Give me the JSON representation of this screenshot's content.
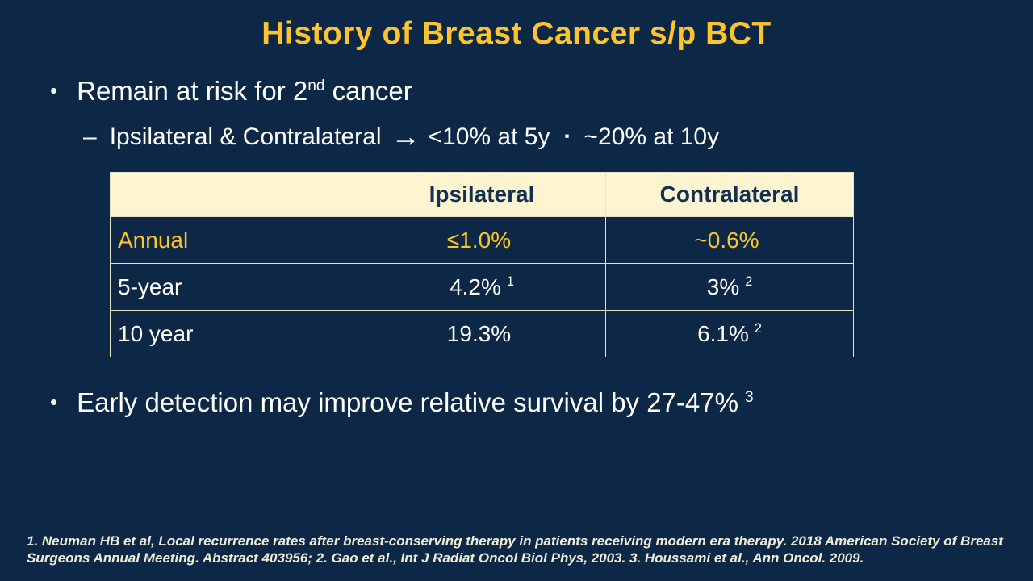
{
  "slide": {
    "title": "History of Breast Cancer s/p BCT",
    "bullet_second_cancer": {
      "text": "Remain at risk for 2",
      "sup": "nd",
      "text_after": " cancer"
    },
    "sub_bullet_rates": {
      "dash": "–",
      "text": "Ipsilateral & Contralateral",
      "arrow": "→",
      "stat1": "<10% at 5y",
      "separator": "▪",
      "stat2": "~20% at 10y"
    },
    "table": {
      "headers": [
        "",
        "Ipsilateral",
        "Contralateral"
      ],
      "rows": [
        {
          "label": "Annual",
          "ipsi": "≤1.0%",
          "ipsi_sup": "",
          "contra": "~0.6%",
          "contra_sup": ""
        },
        {
          "label": "5-year",
          "ipsi": "4.2%",
          "ipsi_sup": "1",
          "contra": "3%",
          "contra_sup": "2"
        },
        {
          "label": "10 year",
          "ipsi": "19.3%",
          "ipsi_sup": "",
          "contra": "6.1%",
          "contra_sup": "2"
        }
      ]
    },
    "bullet_early_detection": {
      "text": "Early detection may improve relative survival by 27-47%",
      "sup": "3"
    },
    "footnote": "1. Neuman HB et al, Local recurrence rates after breast-conserving therapy in patients receiving modern era therapy. 2018 American Society of Breast Surgeons Annual Meeting. Abstract 403956; 2. Gao et al., Int J Radiat Oncol Biol Phys, 2003. 3. Houssami et al., Ann Oncol. 2009.",
    "glyphs": {
      "bullet": "•"
    },
    "colors": {
      "background": "#0D2847",
      "title_gold": "#FFC32B",
      "table_header_bg": "#FDF4D0",
      "table_border": "#E8E2C2",
      "body_text": "#FFFFFF",
      "gold_text": "#FFC425",
      "footnote_text": "#F0EDDA"
    }
  }
}
